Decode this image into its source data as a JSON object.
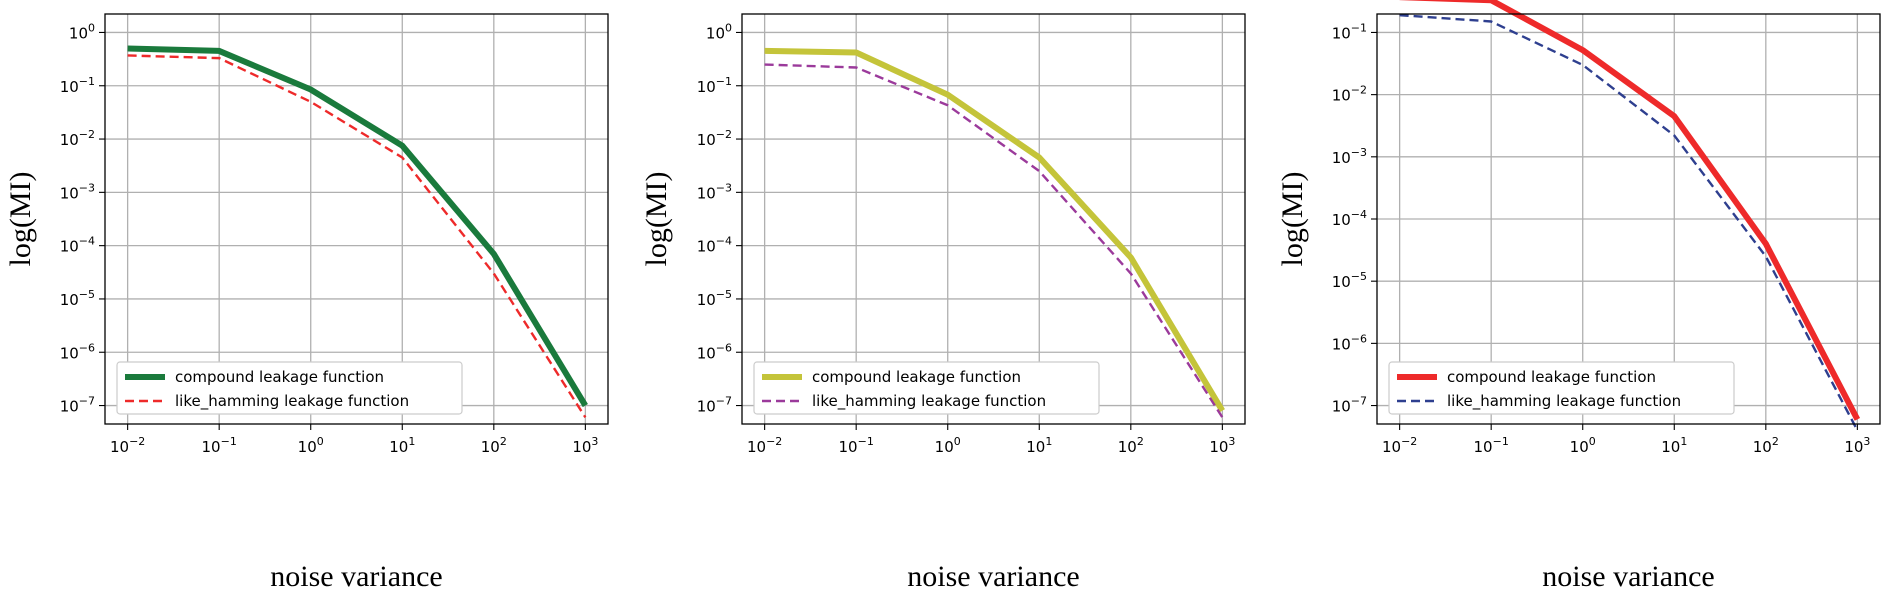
{
  "chart_data": [
    {
      "type": "line",
      "title": "",
      "xlabel": "noise variance",
      "ylabel": "log(MI)",
      "xscale": "log",
      "yscale": "log",
      "xlim_exp": [
        -2,
        3
      ],
      "ylim_exp": [
        -7,
        0
      ],
      "x_ticks": [
        {
          "base": "10",
          "exp": "−2"
        },
        {
          "base": "10",
          "exp": "−1"
        },
        {
          "base": "10",
          "exp": "0"
        },
        {
          "base": "10",
          "exp": "1"
        },
        {
          "base": "10",
          "exp": "2"
        },
        {
          "base": "10",
          "exp": "3"
        }
      ],
      "y_ticks": [
        {
          "base": "10",
          "exp": "−7"
        },
        {
          "base": "10",
          "exp": "−6"
        },
        {
          "base": "10",
          "exp": "−5"
        },
        {
          "base": "10",
          "exp": "−4"
        },
        {
          "base": "10",
          "exp": "−3"
        },
        {
          "base": "10",
          "exp": "−2"
        },
        {
          "base": "10",
          "exp": "−1"
        },
        {
          "base": "10",
          "exp": "0"
        }
      ],
      "grid": true,
      "legend_position": "lower-left",
      "x": [
        0.01,
        0.1,
        1,
        10,
        100,
        1000
      ],
      "series": [
        {
          "name": "compound leakage function",
          "values": [
            0.5,
            0.45,
            0.085,
            0.0075,
            7e-05,
            1e-07
          ],
          "color": "#1a7a3c",
          "style": "solid"
        },
        {
          "name": "like_hamming leakage function",
          "values": [
            0.37,
            0.33,
            0.05,
            0.0045,
            3e-05,
            6e-08
          ],
          "color": "#ee2a2a",
          "style": "dashed"
        }
      ]
    },
    {
      "type": "line",
      "title": "",
      "xlabel": "noise variance",
      "ylabel": "log(MI)",
      "xscale": "log",
      "yscale": "log",
      "xlim_exp": [
        -2,
        3
      ],
      "ylim_exp": [
        -7,
        0
      ],
      "x_ticks": [
        {
          "base": "10",
          "exp": "−2"
        },
        {
          "base": "10",
          "exp": "−1"
        },
        {
          "base": "10",
          "exp": "0"
        },
        {
          "base": "10",
          "exp": "1"
        },
        {
          "base": "10",
          "exp": "2"
        },
        {
          "base": "10",
          "exp": "3"
        }
      ],
      "y_ticks": [
        {
          "base": "10",
          "exp": "−7"
        },
        {
          "base": "10",
          "exp": "−6"
        },
        {
          "base": "10",
          "exp": "−5"
        },
        {
          "base": "10",
          "exp": "−4"
        },
        {
          "base": "10",
          "exp": "−3"
        },
        {
          "base": "10",
          "exp": "−2"
        },
        {
          "base": "10",
          "exp": "−1"
        },
        {
          "base": "10",
          "exp": "0"
        }
      ],
      "grid": true,
      "legend_position": "lower-left",
      "x": [
        0.01,
        0.1,
        1,
        10,
        100,
        1000
      ],
      "series": [
        {
          "name": "compound leakage function",
          "values": [
            0.45,
            0.42,
            0.068,
            0.0045,
            6e-05,
            8e-08
          ],
          "color": "#c4c43a",
          "style": "solid"
        },
        {
          "name": "like_hamming leakage function",
          "values": [
            0.25,
            0.22,
            0.043,
            0.0025,
            3e-05,
            6e-08
          ],
          "color": "#9b3a9b",
          "style": "dashed"
        }
      ]
    },
    {
      "type": "line",
      "title": "",
      "xlabel": "noise variance",
      "ylabel": "log(MI)",
      "xscale": "log",
      "yscale": "log",
      "xlim_exp": [
        -2,
        3
      ],
      "ylim_exp": [
        -7,
        -1
      ],
      "x_ticks": [
        {
          "base": "10",
          "exp": "−2"
        },
        {
          "base": "10",
          "exp": "−1"
        },
        {
          "base": "10",
          "exp": "0"
        },
        {
          "base": "10",
          "exp": "1"
        },
        {
          "base": "10",
          "exp": "2"
        },
        {
          "base": "10",
          "exp": "3"
        }
      ],
      "y_ticks": [
        {
          "base": "10",
          "exp": "−7"
        },
        {
          "base": "10",
          "exp": "−6"
        },
        {
          "base": "10",
          "exp": "−5"
        },
        {
          "base": "10",
          "exp": "−4"
        },
        {
          "base": "10",
          "exp": "−3"
        },
        {
          "base": "10",
          "exp": "−2"
        },
        {
          "base": "10",
          "exp": "−1"
        }
      ],
      "grid": true,
      "legend_position": "lower-left",
      "x": [
        0.01,
        0.1,
        1,
        10,
        100,
        1000
      ],
      "series": [
        {
          "name": "compound leakage function",
          "values": [
            0.37,
            0.33,
            0.052,
            0.0045,
            4e-05,
            6e-08
          ],
          "color": "#ee2a2a",
          "style": "solid"
        },
        {
          "name": "like_hamming leakage function",
          "values": [
            0.19,
            0.15,
            0.03,
            0.0022,
            2.5e-05,
            4e-08
          ],
          "color": "#2e3f8f",
          "style": "dashed"
        }
      ]
    }
  ]
}
